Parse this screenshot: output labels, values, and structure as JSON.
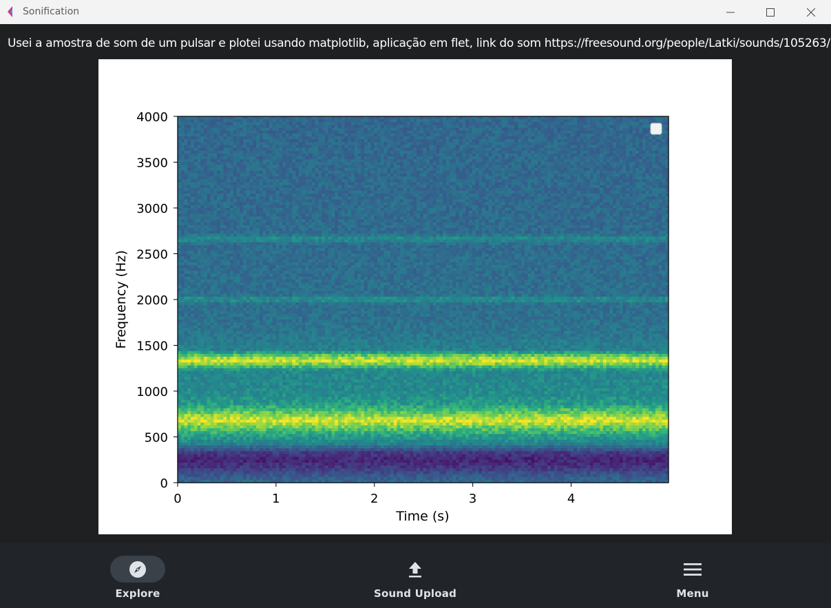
{
  "window": {
    "title": "Sonification",
    "app_icon": "flet-logo-icon",
    "controls": [
      "minimize-icon",
      "maximize-icon",
      "close-icon"
    ]
  },
  "description": "Usei a amostra de som de um pulsar e plotei usando matplotlib, aplicação em flet, link do som https://freesound.org/people/Latki/sounds/105263/",
  "chart_data": {
    "type": "heatmap",
    "subtype": "spectrogram",
    "colormap": "viridis",
    "xlabel": "Time (s)",
    "ylabel": "Frequency (Hz)",
    "xlim": [
      0,
      4.99
    ],
    "ylim": [
      0,
      4000
    ],
    "xticks": [
      0,
      1,
      2,
      3,
      4
    ],
    "yticks": [
      0,
      500,
      1000,
      1500,
      2000,
      2500,
      3000,
      3500,
      4000
    ],
    "legend": "top-right, empty",
    "background_level": 0.42,
    "frequency_profile": [
      {
        "hz": 0,
        "level": 0.42
      },
      {
        "hz": 60,
        "level": 0.38
      },
      {
        "hz": 150,
        "level": 0.22
      },
      {
        "hz": 250,
        "level": 0.12
      },
      {
        "hz": 330,
        "level": 0.22
      },
      {
        "hz": 420,
        "level": 0.55
      },
      {
        "hz": 520,
        "level": 0.68
      },
      {
        "hz": 600,
        "level": 0.82
      },
      {
        "hz": 680,
        "level": 0.98
      },
      {
        "hz": 760,
        "level": 0.82
      },
      {
        "hz": 860,
        "level": 0.66
      },
      {
        "hz": 960,
        "level": 0.6
      },
      {
        "hz": 1100,
        "level": 0.58
      },
      {
        "hz": 1220,
        "level": 0.58
      },
      {
        "hz": 1290,
        "level": 0.84
      },
      {
        "hz": 1335,
        "level": 0.97
      },
      {
        "hz": 1380,
        "level": 0.84
      },
      {
        "hz": 1450,
        "level": 0.55
      },
      {
        "hz": 1600,
        "level": 0.5
      },
      {
        "hz": 1800,
        "level": 0.46
      },
      {
        "hz": 1950,
        "level": 0.46
      },
      {
        "hz": 2000,
        "level": 0.64
      },
      {
        "hz": 2050,
        "level": 0.46
      },
      {
        "hz": 2600,
        "level": 0.44
      },
      {
        "hz": 2660,
        "level": 0.62
      },
      {
        "hz": 2720,
        "level": 0.44
      },
      {
        "hz": 4000,
        "level": 0.42
      }
    ]
  },
  "navbar": {
    "selected_index": 0,
    "items": [
      {
        "label": "Explore",
        "icon": "compass-icon"
      },
      {
        "label": "Sound Upload",
        "icon": "upload-icon"
      },
      {
        "label": "Menu",
        "icon": "menu-icon"
      }
    ]
  }
}
